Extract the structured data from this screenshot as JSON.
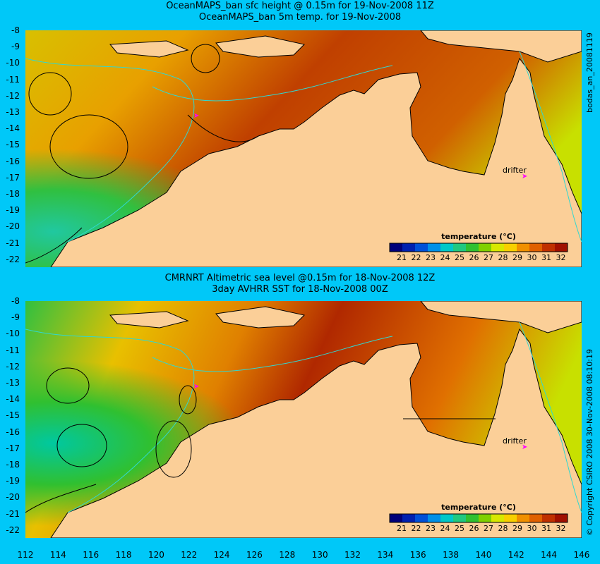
{
  "panel_top": {
    "title1": "OceanMAPS_ban sfc height @ 0.15m for 19-Nov-2008 11Z",
    "title2": "OceanMAPS_ban 5m temp. for 19-Nov-2008",
    "side_label": "bodas_an_20081119",
    "drifter_label": "drifter",
    "colorbar_title": "temperature (°C)"
  },
  "panel_bottom": {
    "title1": "CMRNRT Altimetric sea level  @0.15m  for 18-Nov-2008 12Z",
    "title2": "3day AVHRR SST for 18-Nov-2008 00Z",
    "side_label": "© Copyright CSIRO 2008   30-Nov-2008 08:10:19",
    "drifter_label": "drifter",
    "colorbar_title": "temperature (°C)"
  },
  "axes": {
    "x_ticks": [
      "112",
      "114",
      "116",
      "118",
      "120",
      "122",
      "124",
      "126",
      "128",
      "130",
      "132",
      "134",
      "136",
      "138",
      "140",
      "142",
      "144",
      "146"
    ],
    "y_ticks": [
      "-8",
      "-9",
      "-10",
      "-11",
      "-12",
      "-13",
      "-14",
      "-15",
      "-16",
      "-17",
      "-18",
      "-19",
      "-20",
      "-21",
      "-22"
    ],
    "xlim": [
      112,
      146
    ],
    "ylim": [
      -22.5,
      -8
    ]
  },
  "colorbar": {
    "ticks": [
      "21",
      "22",
      "23",
      "24",
      "25",
      "26",
      "27",
      "28",
      "29",
      "30",
      "31",
      "32"
    ],
    "colors": [
      "#00007a",
      "#0020b0",
      "#0050d8",
      "#0090e8",
      "#00c8c8",
      "#20c880",
      "#30c030",
      "#80d000",
      "#d8e800",
      "#f8d000",
      "#f09000",
      "#e06000",
      "#c03000",
      "#a01000"
    ]
  },
  "colors": {
    "land": "#fbcf98",
    "background": "#00c8f8",
    "coast_outline": "#000000",
    "contour": "#000000",
    "bathy_contour": "#30d8d0",
    "drifter_marker": "#ff00ff"
  }
}
